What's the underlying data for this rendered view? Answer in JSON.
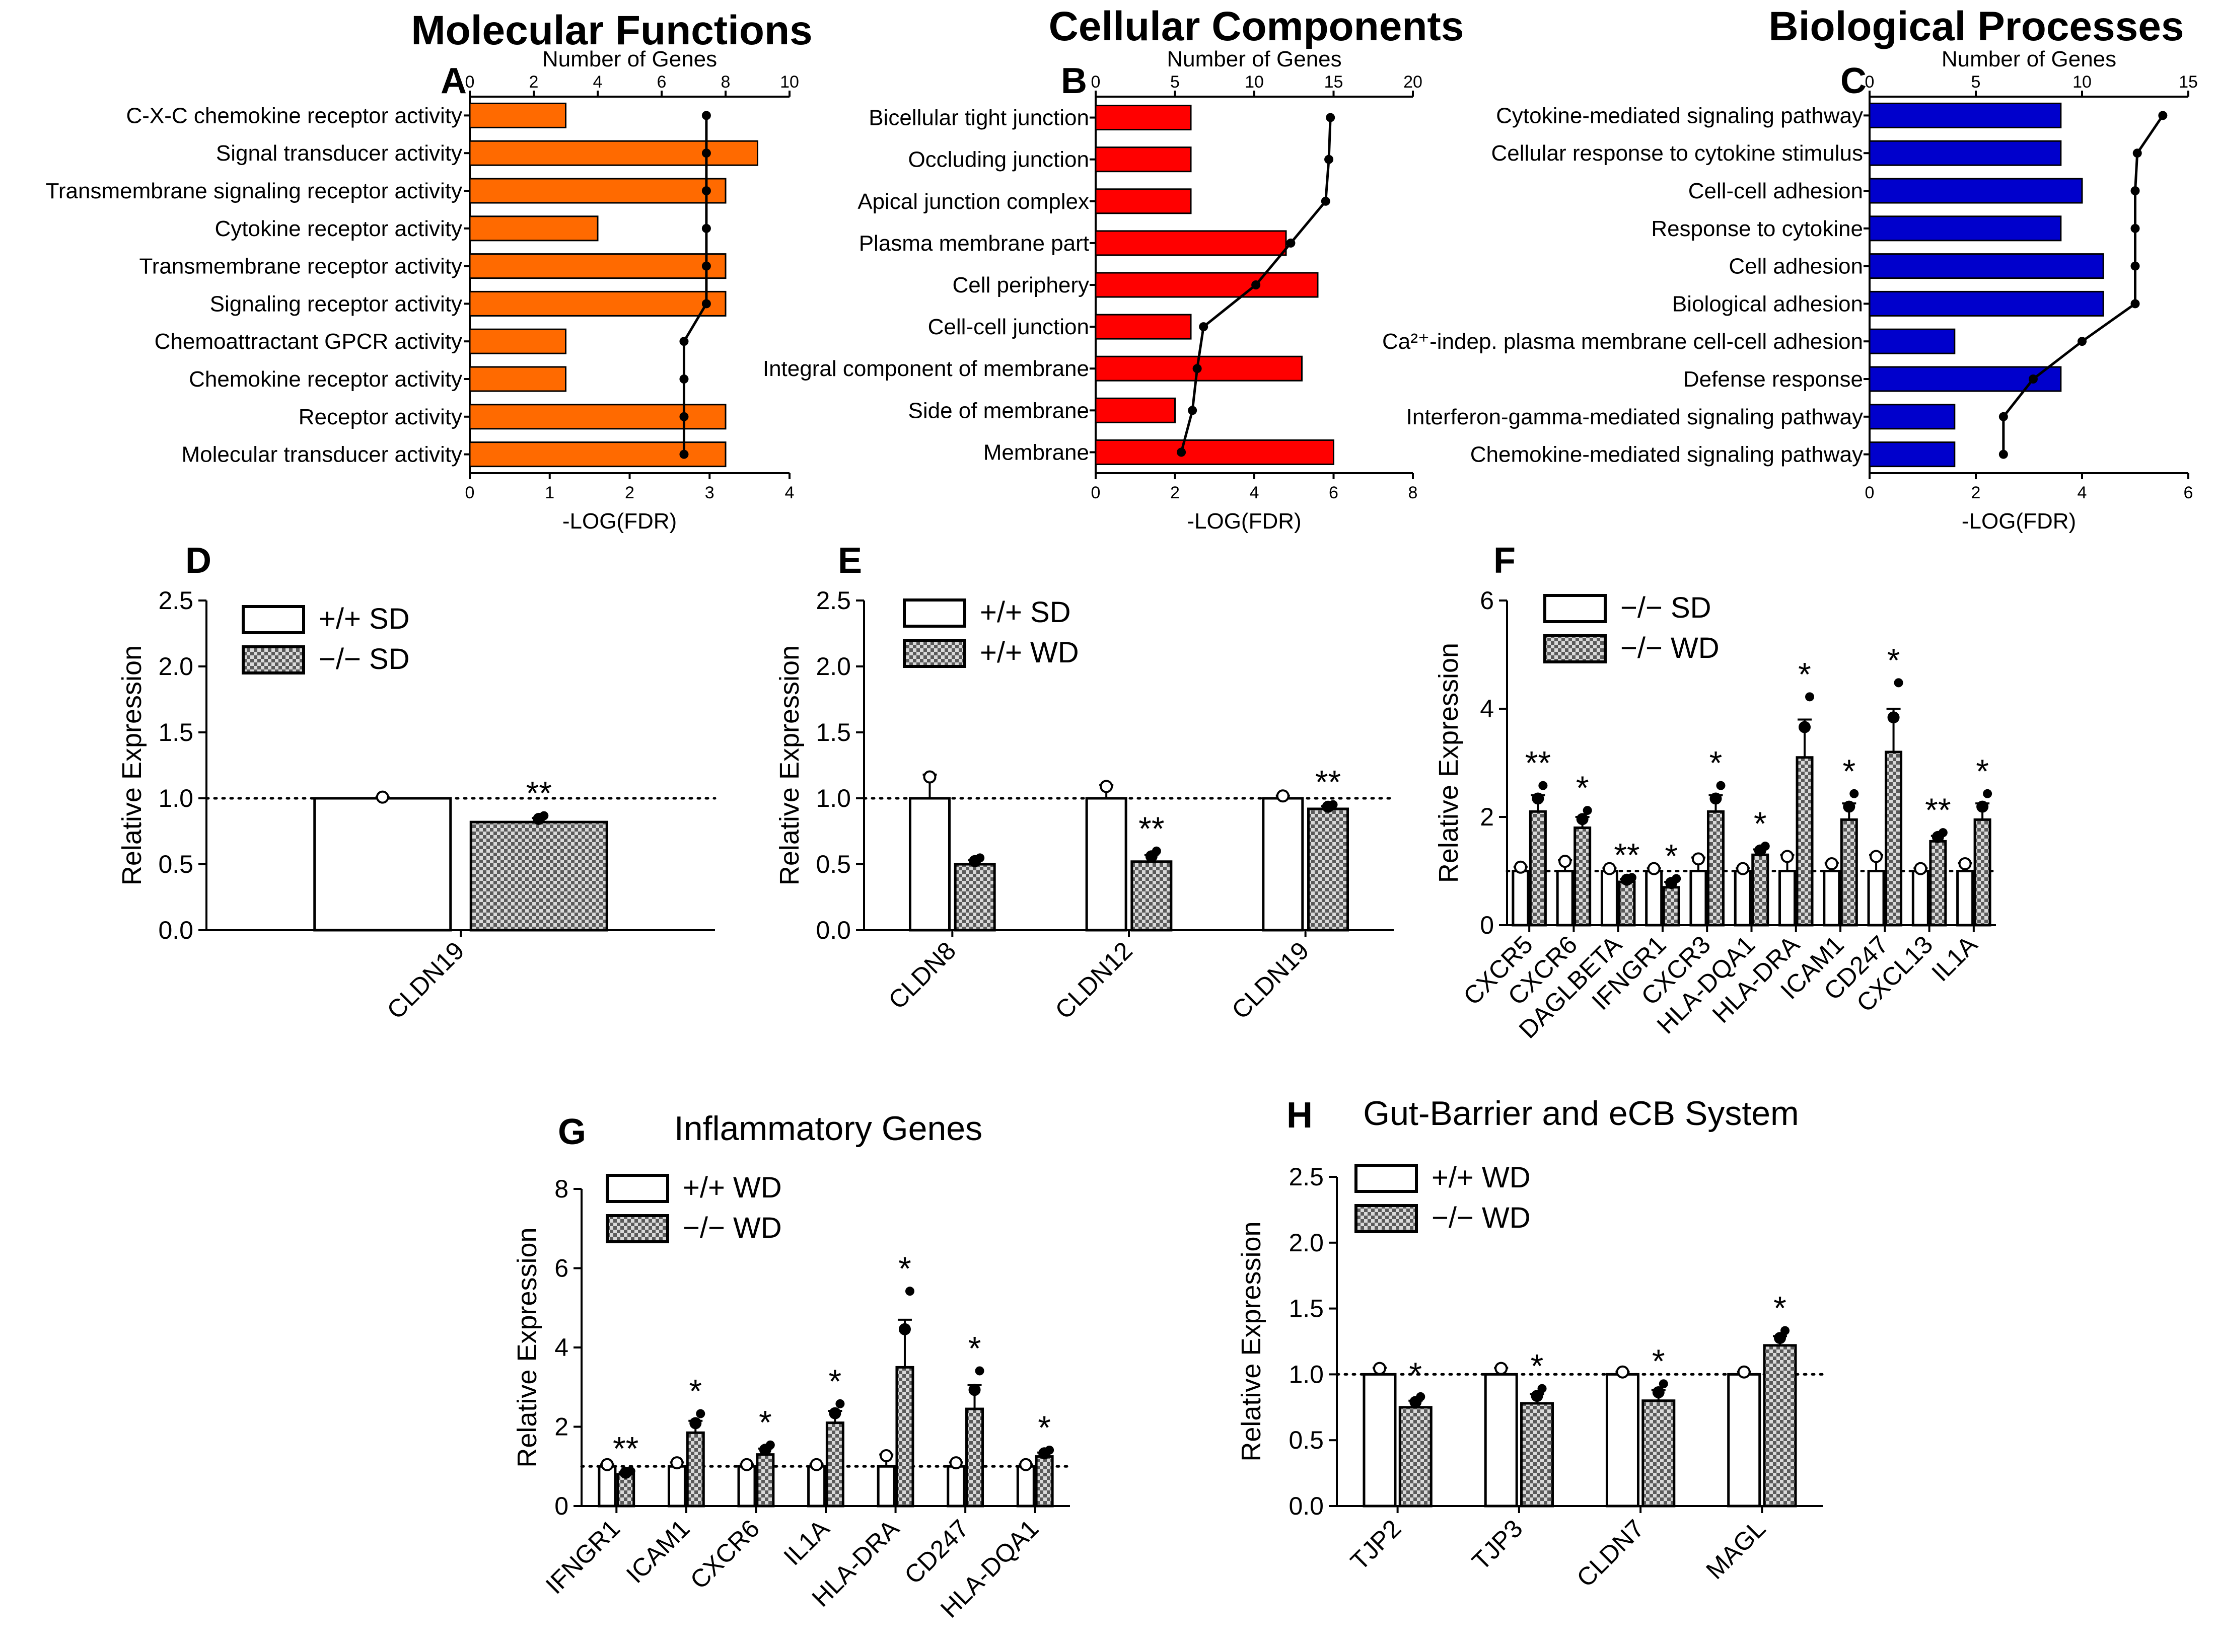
{
  "section_titles": {
    "molecular": "Molecular Functions",
    "cellular": "Cellular Components",
    "biological": "Biological Processes"
  },
  "chart_data": [
    {
      "id": "A",
      "panel_letter": "A",
      "type": "bar",
      "top_axis_label": "Number of Genes",
      "top_axis_ticks": [
        0,
        2,
        4,
        6,
        8,
        10
      ],
      "top_xlim": [
        0,
        10
      ],
      "xlabel": "-LOG(FDR)",
      "xticks": [
        0,
        1,
        2,
        3,
        4
      ],
      "xlim": [
        0,
        4
      ],
      "bar_color": "#ff6a00",
      "categories": [
        "C-X-C chemokine receptor activity",
        "Signal transducer activity",
        "Transmembrane signaling receptor activity",
        "Cytokine receptor activity",
        "Transmembrane receptor activity",
        "Signaling receptor activity",
        "Chemoattractant GPCR activity",
        "Chemokine receptor activity",
        "Receptor activity",
        "Molecular transducer activity"
      ],
      "series": [
        {
          "name": "-LOG(FDR)",
          "values": [
            1.2,
            3.6,
            3.2,
            1.6,
            3.2,
            3.2,
            1.2,
            1.2,
            3.2,
            3.2
          ]
        },
        {
          "name": "Number of Genes",
          "values": [
            7.4,
            7.4,
            7.4,
            7.4,
            7.4,
            7.4,
            6.7,
            6.7,
            6.7,
            6.7
          ]
        }
      ]
    },
    {
      "id": "B",
      "panel_letter": "B",
      "type": "bar",
      "top_axis_label": "Number of Genes",
      "top_axis_ticks": [
        0,
        5,
        10,
        15,
        20
      ],
      "top_xlim": [
        0,
        20
      ],
      "xlabel": "-LOG(FDR)",
      "xticks": [
        0,
        2,
        4,
        6,
        8
      ],
      "xlim": [
        0,
        8
      ],
      "bar_color": "#ff0000",
      "categories": [
        "Bicellular tight junction",
        "Occluding junction",
        "Apical junction complex",
        "Plasma membrane part",
        "Cell periphery",
        "Cell-cell junction",
        "Integral component of membrane",
        "Side of membrane",
        "Membrane"
      ],
      "series": [
        {
          "name": "-LOG(FDR)",
          "values": [
            2.4,
            2.4,
            2.4,
            4.8,
            5.6,
            2.4,
            5.2,
            2.0,
            6.0
          ]
        },
        {
          "name": "Number of Genes",
          "values": [
            14.8,
            14.7,
            14.5,
            12.3,
            10.1,
            6.8,
            6.4,
            6.1,
            5.4
          ]
        }
      ]
    },
    {
      "id": "C",
      "panel_letter": "C",
      "type": "bar",
      "top_axis_label": "Number of Genes",
      "top_axis_ticks": [
        0,
        5,
        10,
        15
      ],
      "top_xlim": [
        0,
        15
      ],
      "xlabel": "-LOG(FDR)",
      "xticks": [
        0,
        2,
        4,
        6
      ],
      "xlim": [
        0,
        6
      ],
      "bar_color": "#0000cc",
      "categories": [
        "Cytokine-mediated signaling pathway",
        "Cellular response to cytokine stimulus",
        "Cell-cell adhesion",
        "Response to cytokine",
        "Cell adhesion",
        "Biological adhesion",
        "Ca²⁺-indep. plasma membrane cell-cell adhesion",
        "Defense response",
        "Interferon-gamma-mediated signaling pathway",
        "Chemokine-mediated signaling pathway"
      ],
      "series": [
        {
          "name": "-LOG(FDR)",
          "values": [
            3.6,
            3.6,
            4.0,
            3.6,
            4.4,
            4.4,
            1.6,
            3.6,
            1.6,
            1.6
          ]
        },
        {
          "name": "Number of Genes",
          "values": [
            13.8,
            12.6,
            12.5,
            12.5,
            12.5,
            12.5,
            10.0,
            7.7,
            6.3,
            6.3
          ]
        }
      ]
    },
    {
      "id": "D",
      "panel_letter": "D",
      "type": "bar",
      "title": "",
      "ylabel": "Relative Expression",
      "ylim": [
        0,
        2.5
      ],
      "yticks": [
        "0.0",
        "0.5",
        "1.0",
        "1.5",
        "2.0",
        "2.5"
      ],
      "legend": [
        "+/+ SD",
        "−/− SD"
      ],
      "categories": [
        "CLDN19"
      ],
      "series": [
        {
          "name": "+/+ SD",
          "values": [
            1.0
          ],
          "err": [
            0.01
          ]
        },
        {
          "name": "−/− SD",
          "values": [
            0.82
          ],
          "err": [
            0.03
          ]
        }
      ],
      "annotations": [
        {
          "category": 0,
          "series": 1,
          "text": "**"
        }
      ]
    },
    {
      "id": "E",
      "panel_letter": "E",
      "type": "bar",
      "title": "",
      "ylabel": "Relative Expression",
      "ylim": [
        0,
        2.5
      ],
      "yticks": [
        "0.0",
        "0.5",
        "1.0",
        "1.5",
        "2.0",
        "2.5"
      ],
      "legend": [
        "+/+ SD",
        "+/+ WD"
      ],
      "categories": [
        "CLDN8",
        "CLDN12",
        "CLDN19"
      ],
      "series": [
        {
          "name": "+/+ SD",
          "values": [
            1.0,
            1.0,
            1.0
          ],
          "err": [
            0.18,
            0.1,
            0.02
          ]
        },
        {
          "name": "+/+ WD",
          "values": [
            0.5,
            0.52,
            0.92
          ],
          "err": [
            0.03,
            0.05,
            0.02
          ]
        }
      ],
      "annotations": [
        {
          "category": 1,
          "series": 1,
          "text": "**"
        },
        {
          "category": 2,
          "series": 1,
          "text": "**"
        }
      ]
    },
    {
      "id": "F",
      "panel_letter": "F",
      "type": "bar",
      "title": "",
      "ylabel": "Relative Expression",
      "ylim": [
        0,
        6
      ],
      "yticks": [
        "0",
        "2",
        "4",
        "6"
      ],
      "legend": [
        "−/− SD",
        "−/− WD"
      ],
      "categories": [
        "CXCR5",
        "CXCR6",
        "DAGLBETA",
        "IFNGR1",
        "CXCR3",
        "HLA-DQA1",
        "HLA-DRA",
        "ICAM1",
        "CD247",
        "CXCL13",
        "IL1A"
      ],
      "series": [
        {
          "name": "−/− SD",
          "values": [
            1.0,
            1.0,
            1.0,
            1.0,
            1.0,
            1.0,
            1.0,
            1.0,
            1.0,
            1.0,
            1.0
          ],
          "err": [
            0.08,
            0.2,
            0.05,
            0.05,
            0.25,
            0.05,
            0.3,
            0.15,
            0.3,
            0.05,
            0.15
          ]
        },
        {
          "name": "−/− WD",
          "values": [
            2.1,
            1.8,
            0.8,
            0.7,
            2.1,
            1.3,
            3.1,
            1.95,
            3.2,
            1.55,
            1.95
          ]
        },
        {
          "name": "−/− WD err",
          "values": [
            0.3,
            0.2,
            0.05,
            0.1,
            0.3,
            0.1,
            0.7,
            0.3,
            0.8,
            0.1,
            0.3
          ]
        }
      ],
      "annotations": [
        "**",
        "*",
        "**",
        "*",
        "*",
        "*",
        "*",
        "*",
        "*",
        "**",
        "*"
      ]
    },
    {
      "id": "G",
      "panel_letter": "G",
      "type": "bar",
      "title": "Inflammatory Genes",
      "ylabel": "Relative Expression",
      "ylim": [
        0,
        8
      ],
      "yticks": [
        "0",
        "2",
        "4",
        "6",
        "8"
      ],
      "legend": [
        "+/+ WD",
        "−/− WD"
      ],
      "categories": [
        "IFNGR1",
        "ICAM1",
        "CXCR6",
        "IL1A",
        "HLA-DRA",
        "CD247",
        "HLA-DQA1"
      ],
      "series": [
        {
          "name": "+/+ WD",
          "values": [
            1.0,
            1.0,
            1.0,
            1.0,
            1.0,
            1.0,
            1.0
          ],
          "err": [
            0.05,
            0.1,
            0.05,
            0.05,
            0.3,
            0.1,
            0.05
          ]
        },
        {
          "name": "−/− WD",
          "values": [
            0.8,
            1.85,
            1.3,
            2.1,
            3.5,
            2.45,
            1.25
          ],
          "err": [
            0.05,
            0.3,
            0.15,
            0.3,
            1.2,
            0.6,
            0.1
          ]
        }
      ],
      "annotations": [
        "**",
        "*",
        "*",
        "*",
        "*",
        "*",
        "*"
      ]
    },
    {
      "id": "H",
      "panel_letter": "H",
      "type": "bar",
      "title": "Gut-Barrier and eCB System",
      "ylabel": "Relative Expression",
      "ylim": [
        0,
        2.5
      ],
      "yticks": [
        "0.0",
        "0.5",
        "1.0",
        "1.5",
        "2.0",
        "2.5"
      ],
      "legend": [
        "+/+ WD",
        "−/− WD"
      ],
      "categories": [
        "TJP2",
        "TJP3",
        "CLDN7",
        "MAGL"
      ],
      "series": [
        {
          "name": "+/+ WD",
          "values": [
            1.0,
            1.0,
            1.0,
            1.0
          ],
          "err": [
            0.05,
            0.05,
            0.02,
            0.02
          ]
        },
        {
          "name": "−/− WD",
          "values": [
            0.75,
            0.78,
            0.8,
            1.22
          ],
          "err": [
            0.05,
            0.07,
            0.08,
            0.07
          ]
        }
      ],
      "annotations": [
        "*",
        "*",
        "*",
        "*"
      ]
    }
  ]
}
